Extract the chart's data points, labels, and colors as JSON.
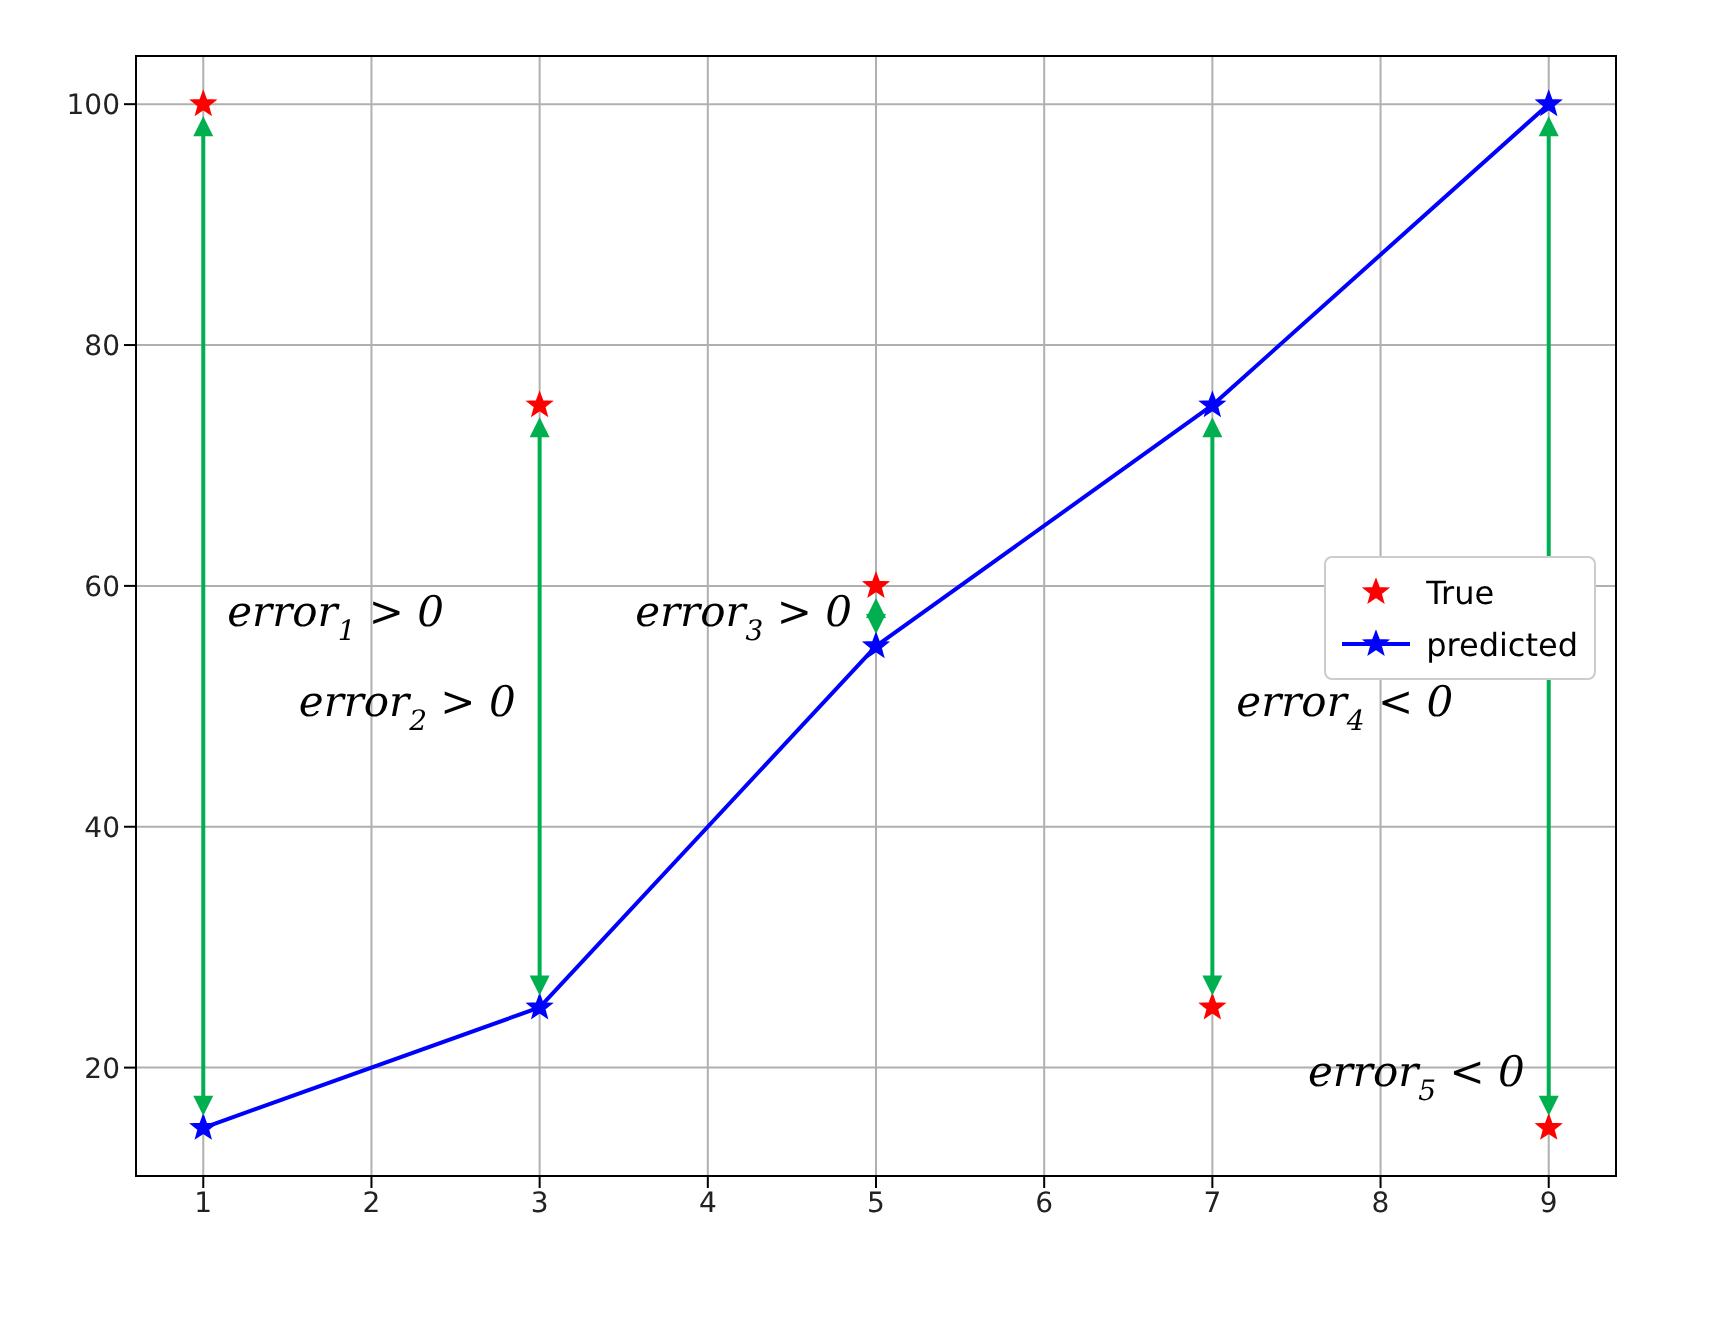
{
  "chart_data": {
    "type": "line",
    "x": [
      1,
      3,
      5,
      7,
      9
    ],
    "series": [
      {
        "name": "True",
        "type": "scatter",
        "color": "#ff0000",
        "values": [
          100,
          75,
          60,
          25,
          15
        ]
      },
      {
        "name": "predicted",
        "color": "#0000ff",
        "values": [
          15,
          25,
          55,
          75,
          100
        ]
      }
    ],
    "xlim": [
      0.6,
      9.4
    ],
    "ylim": [
      11,
      104
    ],
    "xticks": [
      1,
      2,
      3,
      4,
      5,
      6,
      7,
      8,
      9
    ],
    "yticks": [
      20,
      40,
      60,
      80,
      100
    ],
    "grid": true,
    "legend": "center right",
    "marker": "star",
    "annotations": [
      "error$_{1}$ > 0",
      "error$_{2}$ > 0",
      "error$_{3}$ > 0",
      "error$_{4}$ < 0",
      "error$_{5}$ < 0"
    ]
  }
}
